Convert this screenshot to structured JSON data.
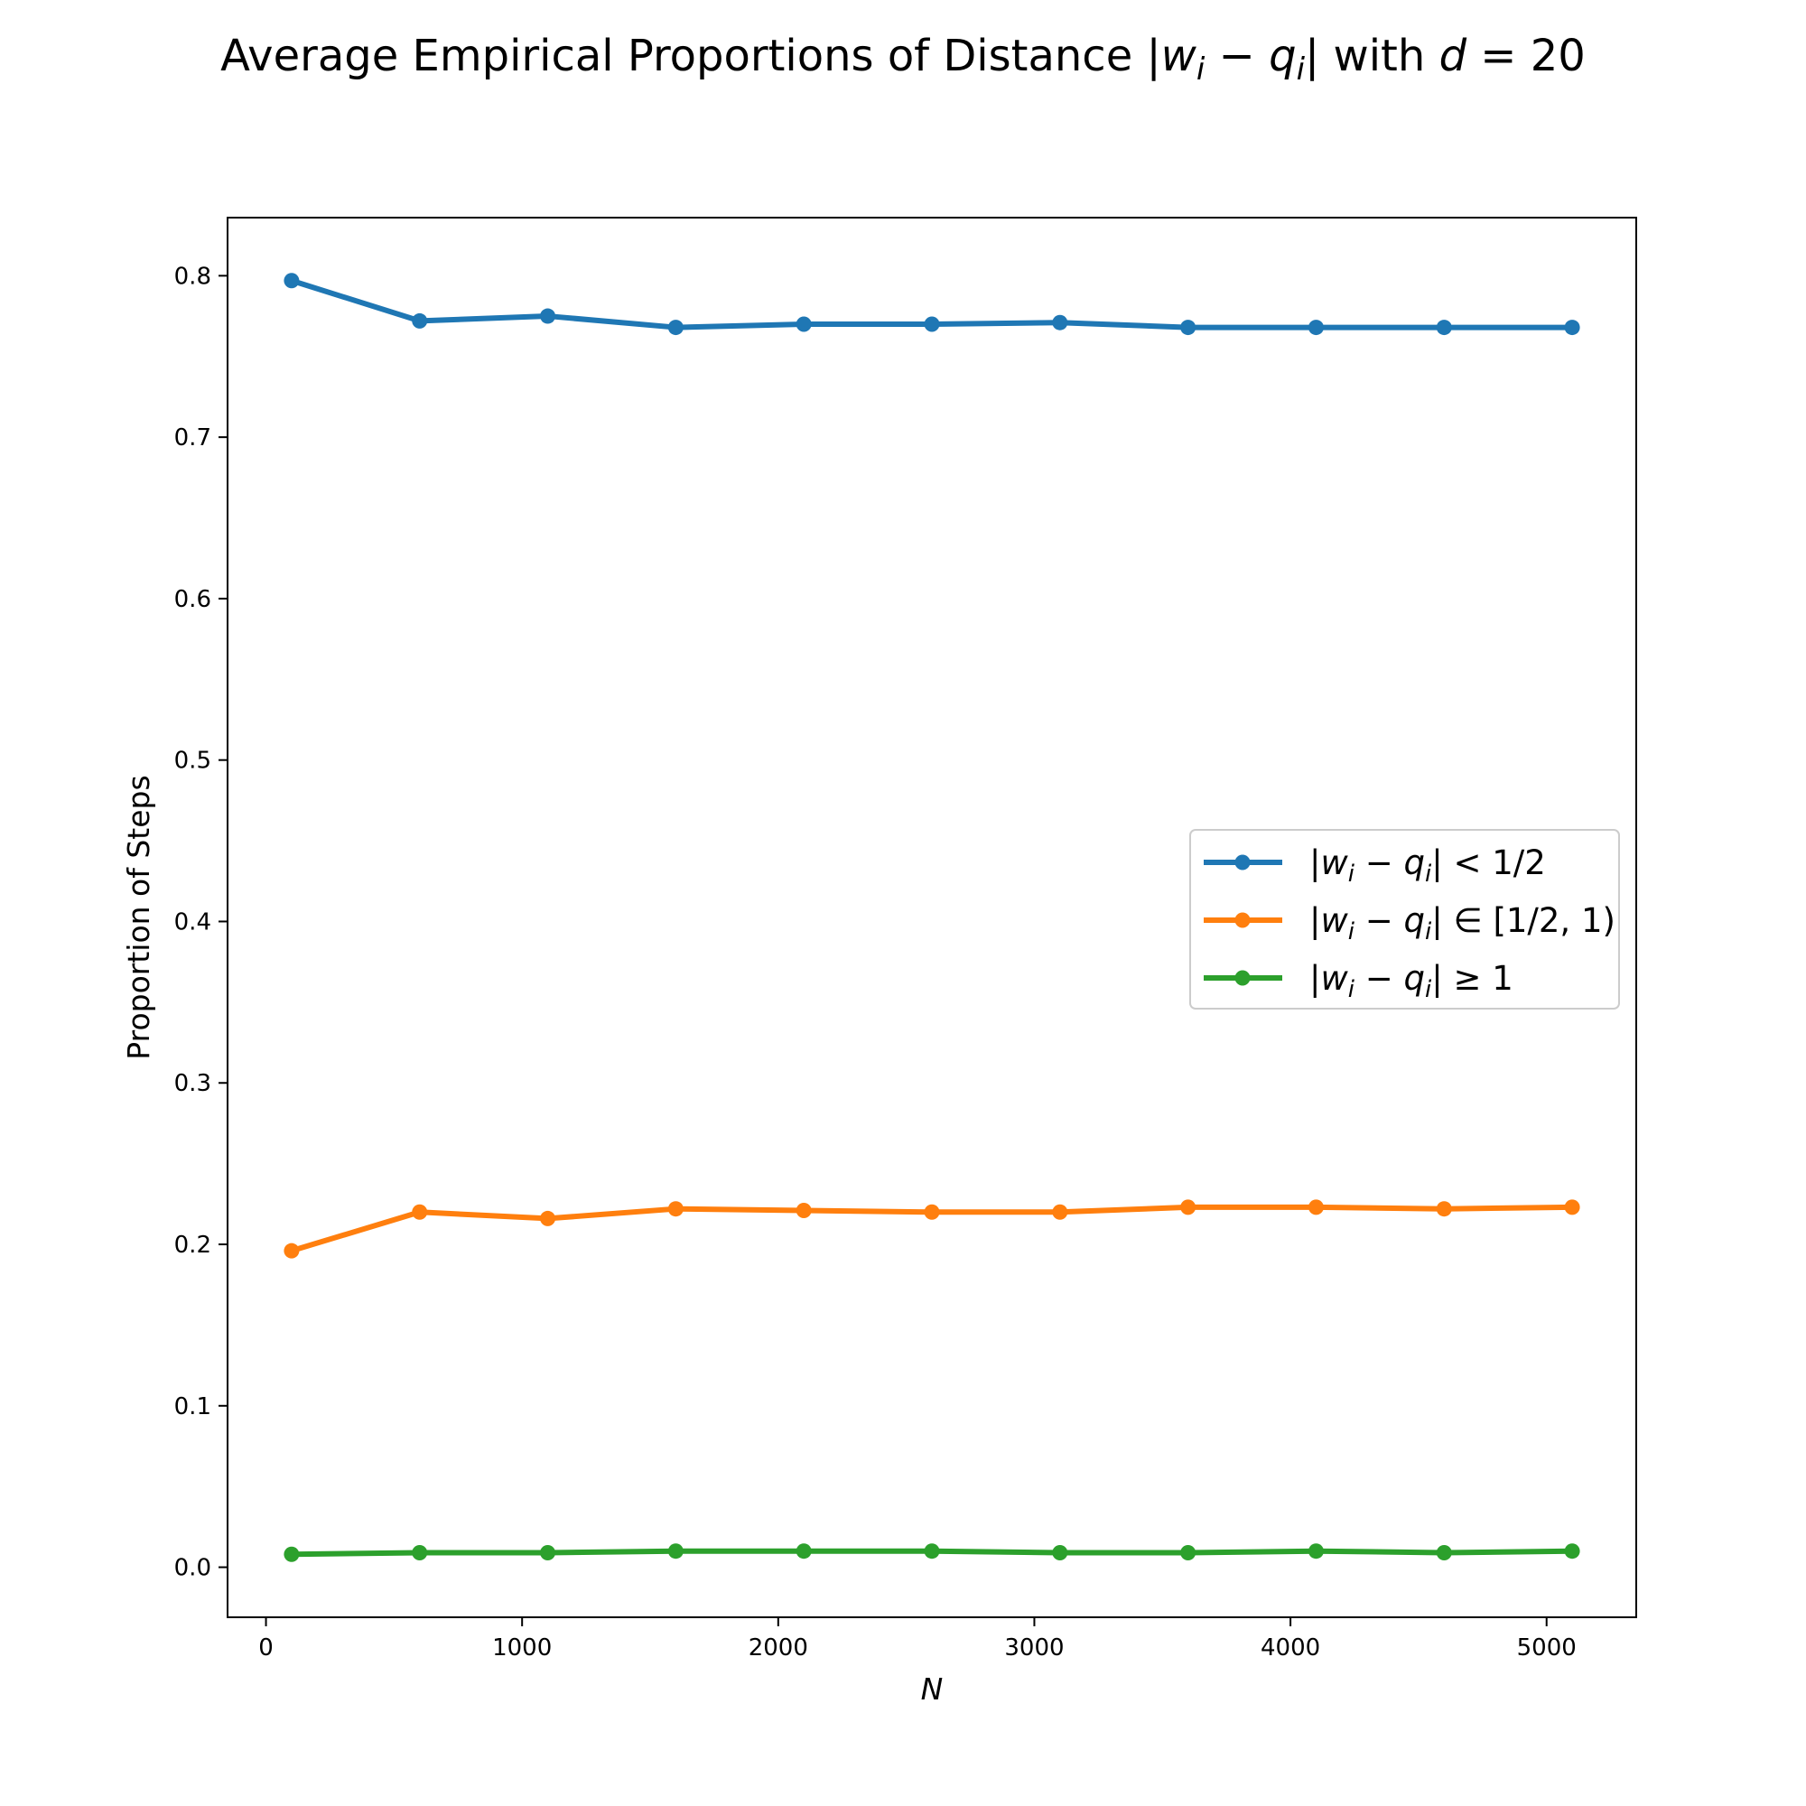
{
  "chart_data": {
    "type": "line",
    "title_parts": {
      "prefix": "Average Empirical Proportions of Distance |",
      "w": "w",
      "i1": "i",
      "minus": " − ",
      "q": "q",
      "i2": "i",
      "mid": "| with ",
      "d": "d",
      "suffix": " = 20"
    },
    "xlabel": "N",
    "ylabel": "Proportion of Steps",
    "xlim": [
      -150,
      5350
    ],
    "ylim": [
      -0.031,
      0.836
    ],
    "xticks": [
      0,
      1000,
      2000,
      3000,
      4000,
      5000
    ],
    "xtick_labels": [
      "0",
      "1000",
      "2000",
      "3000",
      "4000",
      "5000"
    ],
    "yticks": [
      0.0,
      0.1,
      0.2,
      0.3,
      0.4,
      0.5,
      0.6,
      0.7,
      0.8
    ],
    "ytick_labels": [
      "0.0",
      "0.1",
      "0.2",
      "0.3",
      "0.4",
      "0.5",
      "0.6",
      "0.7",
      "0.8"
    ],
    "grid": false,
    "legend_position": "center-right",
    "x": [
      100,
      600,
      1100,
      1600,
      2100,
      2600,
      3100,
      3600,
      4100,
      4600,
      5100
    ],
    "series": [
      {
        "color": "#1f77b4",
        "legend": {
          "pre": "|",
          "w": "w",
          "i1": "i",
          "minus": " − ",
          "q": "q",
          "i2": "i",
          "rel": "| < 1/2"
        },
        "values": [
          0.797,
          0.772,
          0.775,
          0.768,
          0.77,
          0.77,
          0.771,
          0.768,
          0.768,
          0.768,
          0.768
        ]
      },
      {
        "color": "#ff7f0e",
        "legend": {
          "pre": "|",
          "w": "w",
          "i1": "i",
          "minus": " − ",
          "q": "q",
          "i2": "i",
          "rel": "| ∈ [1/2, 1)"
        },
        "values": [
          0.196,
          0.22,
          0.216,
          0.222,
          0.221,
          0.22,
          0.22,
          0.223,
          0.223,
          0.222,
          0.223
        ]
      },
      {
        "color": "#2ca02c",
        "legend": {
          "pre": "|",
          "w": "w",
          "i1": "i",
          "minus": " − ",
          "q": "q",
          "i2": "i",
          "rel": "| ≥ 1"
        },
        "values": [
          0.008,
          0.009,
          0.009,
          0.01,
          0.01,
          0.01,
          0.009,
          0.009,
          0.01,
          0.009,
          0.01
        ]
      }
    ]
  }
}
